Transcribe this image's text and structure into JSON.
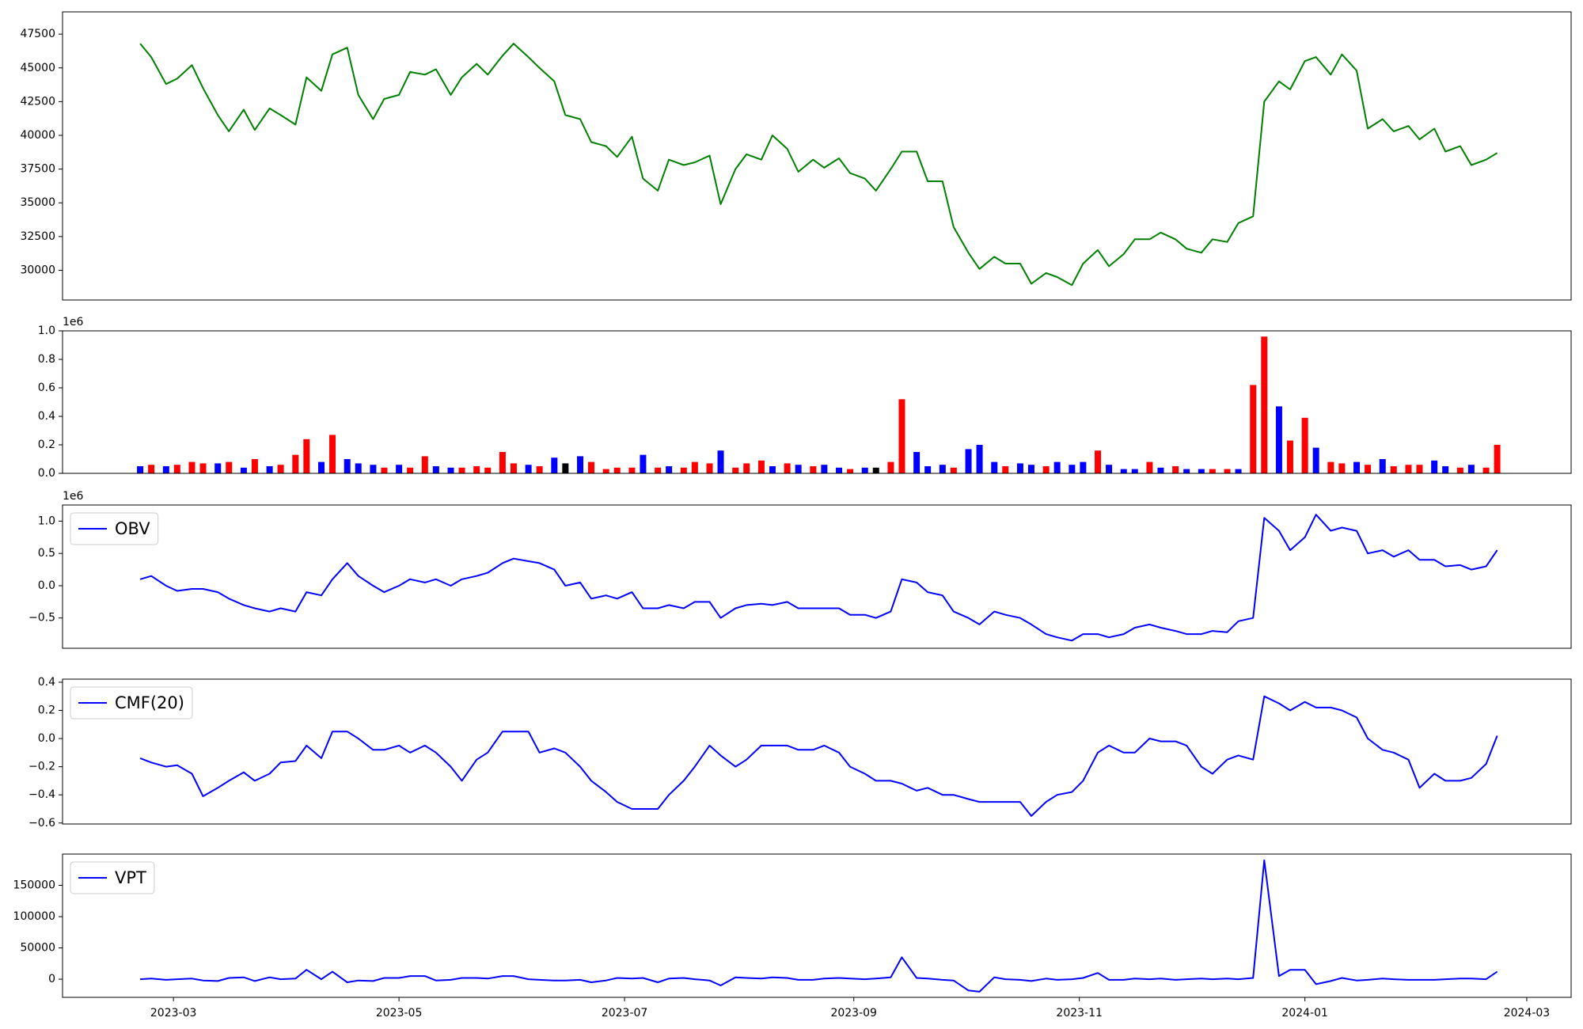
{
  "chart_data": [
    {
      "type": "line",
      "color": "#008000",
      "x": [
        "2023-02-20",
        "2023-02-23",
        "2023-02-27",
        "2023-03-02",
        "2023-03-06",
        "2023-03-09",
        "2023-03-13",
        "2023-03-16",
        "2023-03-20",
        "2023-03-23",
        "2023-03-27",
        "2023-03-30",
        "2023-04-03",
        "2023-04-06",
        "2023-04-10",
        "2023-04-13",
        "2023-04-17",
        "2023-04-20",
        "2023-04-24",
        "2023-04-27",
        "2023-05-01",
        "2023-05-04",
        "2023-05-08",
        "2023-05-11",
        "2023-05-15",
        "2023-05-18",
        "2023-05-22",
        "2023-05-25",
        "2023-05-29",
        "2023-06-01",
        "2023-06-05",
        "2023-06-08",
        "2023-06-12",
        "2023-06-15",
        "2023-06-19",
        "2023-06-22",
        "2023-06-26",
        "2023-06-29",
        "2023-07-03",
        "2023-07-06",
        "2023-07-10",
        "2023-07-13",
        "2023-07-17",
        "2023-07-20",
        "2023-07-24",
        "2023-07-27",
        "2023-07-31",
        "2023-08-03",
        "2023-08-07",
        "2023-08-10",
        "2023-08-14",
        "2023-08-17",
        "2023-08-21",
        "2023-08-24",
        "2023-08-28",
        "2023-08-31",
        "2023-09-04",
        "2023-09-07",
        "2023-09-11",
        "2023-09-14",
        "2023-09-18",
        "2023-09-21",
        "2023-09-25",
        "2023-09-28",
        "2023-10-02",
        "2023-10-05",
        "2023-10-09",
        "2023-10-12",
        "2023-10-16",
        "2023-10-19",
        "2023-10-23",
        "2023-10-26",
        "2023-10-30",
        "2023-11-02",
        "2023-11-06",
        "2023-11-09",
        "2023-11-13",
        "2023-11-16",
        "2023-11-20",
        "2023-11-23",
        "2023-11-27",
        "2023-11-30",
        "2023-12-04",
        "2023-12-07",
        "2023-12-11",
        "2023-12-14",
        "2023-12-18",
        "2023-12-21",
        "2023-12-25",
        "2023-12-28",
        "2024-01-01",
        "2024-01-04",
        "2024-01-08",
        "2024-01-11",
        "2024-01-15",
        "2024-01-18",
        "2024-01-22",
        "2024-01-25",
        "2024-01-29",
        "2024-02-01",
        "2024-02-05",
        "2024-02-08",
        "2024-02-12",
        "2024-02-15",
        "2024-02-19",
        "2024-02-22"
      ],
      "values": [
        46800,
        45800,
        43800,
        44200,
        45200,
        43500,
        41500,
        40300,
        41900,
        40400,
        42000,
        41500,
        40800,
        44300,
        43300,
        46000,
        46500,
        43000,
        41200,
        42700,
        43000,
        44700,
        44500,
        44900,
        43000,
        44300,
        45300,
        44500,
        45900,
        46800,
        45800,
        45000,
        44000,
        41500,
        41200,
        39500,
        39200,
        38400,
        39900,
        36800,
        35900,
        38200,
        37800,
        38000,
        38500,
        34900,
        37500,
        38600,
        38200,
        40000,
        39000,
        37300,
        38200,
        37600,
        38300,
        37200,
        36800,
        35900,
        37500,
        38800,
        38800,
        36600,
        36600,
        33200,
        31300,
        30100,
        31000,
        30500,
        30500,
        29000,
        29800,
        29500,
        28900,
        30500,
        31500,
        30300,
        31200,
        32300,
        32300,
        32800,
        32300,
        31600,
        31300,
        32300,
        32100,
        33500,
        34000,
        42500,
        44000,
        43400,
        45500,
        45800,
        44500,
        46000,
        44800,
        40500,
        41200,
        40300,
        40700,
        39700,
        40500,
        38800,
        39200,
        37800,
        38200,
        38700
      ],
      "ylim": [
        27800,
        49150
      ],
      "yticks": [
        30000,
        32500,
        35000,
        37500,
        40000,
        42500,
        45000,
        47500
      ]
    },
    {
      "type": "bar",
      "values": [
        50000,
        60000,
        50000,
        60000,
        80000,
        70000,
        70000,
        80000,
        40000,
        100000,
        50000,
        60000,
        130000,
        240000,
        80000,
        270000,
        100000,
        70000,
        60000,
        40000,
        60000,
        40000,
        120000,
        50000,
        40000,
        40000,
        50000,
        40000,
        150000,
        70000,
        60000,
        50000,
        110000,
        70000,
        120000,
        80000,
        30000,
        40000,
        40000,
        130000,
        40000,
        50000,
        40000,
        80000,
        70000,
        160000,
        40000,
        70000,
        90000,
        50000,
        70000,
        60000,
        50000,
        60000,
        40000,
        30000,
        40000,
        40000,
        80000,
        520000,
        150000,
        50000,
        60000,
        40000,
        170000,
        200000,
        80000,
        50000,
        70000,
        60000,
        50000,
        80000,
        60000,
        80000,
        160000,
        60000,
        30000,
        30000,
        80000,
        40000,
        50000,
        30000,
        30000,
        30000,
        30000,
        30000,
        620000,
        960000,
        470000,
        230000,
        390000,
        180000,
        80000,
        70000,
        80000,
        60000,
        100000,
        50000,
        60000,
        60000,
        90000,
        50000,
        40000,
        60000,
        40000,
        200000
      ],
      "colors": [
        "#0000ff",
        "#ff0000",
        "#0000ff",
        "#ff0000",
        "#ff0000",
        "#ff0000",
        "#0000ff",
        "#ff0000",
        "#0000ff",
        "#ff0000",
        "#0000ff",
        "#ff0000",
        "#ff0000",
        "#ff0000",
        "#0000ff",
        "#ff0000",
        "#0000ff",
        "#0000ff",
        "#0000ff",
        "#ff0000",
        "#0000ff",
        "#ff0000",
        "#ff0000",
        "#0000ff",
        "#0000ff",
        "#ff0000",
        "#ff0000",
        "#ff0000",
        "#ff0000",
        "#ff0000",
        "#0000ff",
        "#ff0000",
        "#0000ff",
        "#000000",
        "#0000ff",
        "#ff0000",
        "#ff0000",
        "#ff0000",
        "#ff0000",
        "#0000ff",
        "#ff0000",
        "#0000ff",
        "#ff0000",
        "#ff0000",
        "#ff0000",
        "#0000ff",
        "#ff0000",
        "#ff0000",
        "#ff0000",
        "#0000ff",
        "#ff0000",
        "#0000ff",
        "#ff0000",
        "#0000ff",
        "#0000ff",
        "#ff0000",
        "#0000ff",
        "#000000",
        "#ff0000",
        "#ff0000",
        "#0000ff",
        "#0000ff",
        "#0000ff",
        "#ff0000",
        "#0000ff",
        "#0000ff",
        "#0000ff",
        "#ff0000",
        "#0000ff",
        "#0000ff",
        "#ff0000",
        "#0000ff",
        "#0000ff",
        "#0000ff",
        "#ff0000",
        "#0000ff",
        "#0000ff",
        "#0000ff",
        "#ff0000",
        "#0000ff",
        "#ff0000",
        "#0000ff",
        "#0000ff",
        "#ff0000",
        "#ff0000",
        "#0000ff",
        "#ff0000",
        "#ff0000",
        "#0000ff",
        "#ff0000",
        "#ff0000",
        "#0000ff",
        "#ff0000",
        "#ff0000",
        "#0000ff",
        "#ff0000",
        "#0000ff",
        "#ff0000",
        "#ff0000",
        "#ff0000",
        "#0000ff",
        "#0000ff",
        "#ff0000",
        "#0000ff",
        "#ff0000",
        "#ff0000"
      ],
      "ylim": [
        0,
        1000000
      ],
      "offset_label": "1e6",
      "yticks": [
        {
          "value": 0,
          "label": "0.0"
        },
        {
          "value": 200000,
          "label": "0.2"
        },
        {
          "value": 400000,
          "label": "0.4"
        },
        {
          "value": 600000,
          "label": "0.6"
        },
        {
          "value": 800000,
          "label": "0.8"
        },
        {
          "value": 1000000,
          "label": "1.0"
        }
      ]
    },
    {
      "type": "line",
      "legend": "upper left",
      "series": [
        {
          "name": "OBV",
          "color": "#0000ff",
          "values": [
            100000,
            150000,
            0,
            -80000,
            -50000,
            -50000,
            -100000,
            -200000,
            -300000,
            -350000,
            -400000,
            -350000,
            -400000,
            -100000,
            -150000,
            100000,
            350000,
            150000,
            0,
            -100000,
            0,
            100000,
            50000,
            100000,
            0,
            100000,
            150000,
            200000,
            350000,
            420000,
            380000,
            350000,
            250000,
            0,
            50000,
            -200000,
            -150000,
            -200000,
            -100000,
            -350000,
            -350000,
            -300000,
            -350000,
            -250000,
            -250000,
            -500000,
            -350000,
            -300000,
            -280000,
            -300000,
            -250000,
            -350000,
            -350000,
            -350000,
            -350000,
            -450000,
            -450000,
            -500000,
            -400000,
            100000,
            50000,
            -100000,
            -150000,
            -400000,
            -500000,
            -600000,
            -400000,
            -450000,
            -500000,
            -600000,
            -750000,
            -800000,
            -850000,
            -750000,
            -750000,
            -800000,
            -750000,
            -650000,
            -600000,
            -650000,
            -700000,
            -750000,
            -750000,
            -700000,
            -720000,
            -550000,
            -500000,
            1050000,
            850000,
            550000,
            750000,
            1100000,
            850000,
            900000,
            850000,
            500000,
            550000,
            450000,
            550000,
            400000,
            400000,
            300000,
            320000,
            250000,
            300000,
            550000
          ]
        }
      ],
      "ylim": [
        -969000,
        1250000
      ],
      "offset_label": "1e6",
      "yticks": [
        {
          "value": -500000,
          "label": "−0.5"
        },
        {
          "value": 0,
          "label": "0.0"
        },
        {
          "value": 500000,
          "label": "0.5"
        },
        {
          "value": 1000000,
          "label": "1.0"
        }
      ]
    },
    {
      "type": "line",
      "legend": "upper left",
      "series": [
        {
          "name": "CMF(20)",
          "color": "#0000ff",
          "values": [
            -0.14,
            -0.17,
            -0.2,
            -0.19,
            -0.25,
            -0.41,
            -0.35,
            -0.3,
            -0.24,
            -0.3,
            -0.25,
            -0.17,
            -0.16,
            -0.05,
            -0.14,
            0.05,
            0.05,
            0.0,
            -0.08,
            -0.08,
            -0.05,
            -0.1,
            -0.05,
            -0.1,
            -0.2,
            -0.3,
            -0.15,
            -0.1,
            0.05,
            0.05,
            0.05,
            -0.1,
            -0.07,
            -0.1,
            -0.2,
            -0.3,
            -0.38,
            -0.45,
            -0.5,
            -0.5,
            -0.5,
            -0.4,
            -0.3,
            -0.2,
            -0.05,
            -0.12,
            -0.2,
            -0.15,
            -0.05,
            -0.05,
            -0.05,
            -0.08,
            -0.08,
            -0.05,
            -0.1,
            -0.2,
            -0.25,
            -0.3,
            -0.3,
            -0.32,
            -0.37,
            -0.35,
            -0.4,
            -0.4,
            -0.43,
            -0.45,
            -0.45,
            -0.45,
            -0.45,
            -0.55,
            -0.45,
            -0.4,
            -0.38,
            -0.3,
            -0.1,
            -0.05,
            -0.1,
            -0.1,
            0.0,
            -0.02,
            -0.02,
            -0.05,
            -0.2,
            -0.25,
            -0.15,
            -0.12,
            -0.15,
            0.3,
            0.25,
            0.2,
            0.26,
            0.22,
            0.22,
            0.2,
            0.15,
            0.0,
            -0.08,
            -0.1,
            -0.15,
            -0.35,
            -0.25,
            -0.3,
            -0.3,
            -0.28,
            -0.18,
            0.02
          ]
        }
      ],
      "ylim": [
        -0.607,
        0.422
      ],
      "yticks": [
        {
          "value": -0.6,
          "label": "−0.6"
        },
        {
          "value": -0.4,
          "label": "−0.4"
        },
        {
          "value": -0.2,
          "label": "−0.2"
        },
        {
          "value": 0,
          "label": "0.0"
        },
        0.2,
        0.4
      ]
    },
    {
      "type": "line",
      "legend": "upper left",
      "series": [
        {
          "name": "VPT",
          "color": "#0000ff",
          "values": [
            0,
            1000,
            -1000,
            0,
            1000,
            -2000,
            -3000,
            2000,
            3000,
            -3000,
            3000,
            0,
            1000,
            15000,
            0,
            12000,
            -5000,
            -2000,
            -3000,
            2000,
            2000,
            5000,
            5000,
            -2000,
            -1000,
            2000,
            2000,
            1000,
            5000,
            5000,
            0,
            -1000,
            -2000,
            -2000,
            -1000,
            -5000,
            -2000,
            2000,
            1000,
            2000,
            -5000,
            1000,
            2000,
            0,
            -2000,
            -10000,
            3000,
            2000,
            1000,
            3000,
            2000,
            -1000,
            -1000,
            1000,
            2000,
            1000,
            0,
            1000,
            3000,
            35000,
            2000,
            1000,
            -1000,
            -2000,
            -18000,
            -20000,
            3000,
            0,
            -1000,
            -3000,
            1000,
            -1000,
            0,
            2000,
            10000,
            -1000,
            -1000,
            1000,
            0,
            1000,
            -1000,
            0,
            1000,
            0,
            1000,
            0,
            2000,
            190000,
            5000,
            15000,
            15000,
            -8000,
            -3000,
            2000,
            -2000,
            -1000,
            1000,
            0,
            -1000,
            -1000,
            -1000,
            0,
            1000,
            1000,
            0,
            12000
          ]
        }
      ],
      "ylim": [
        -29000,
        200000
      ],
      "yticks": [
        0,
        50000,
        100000,
        150000
      ],
      "xlim": [
        "2023-01-30",
        "2024-03-13"
      ],
      "xticks": [
        "2023-03",
        "2023-05",
        "2023-07",
        "2023-09",
        "2023-11",
        "2024-01",
        "2024-03"
      ]
    }
  ]
}
